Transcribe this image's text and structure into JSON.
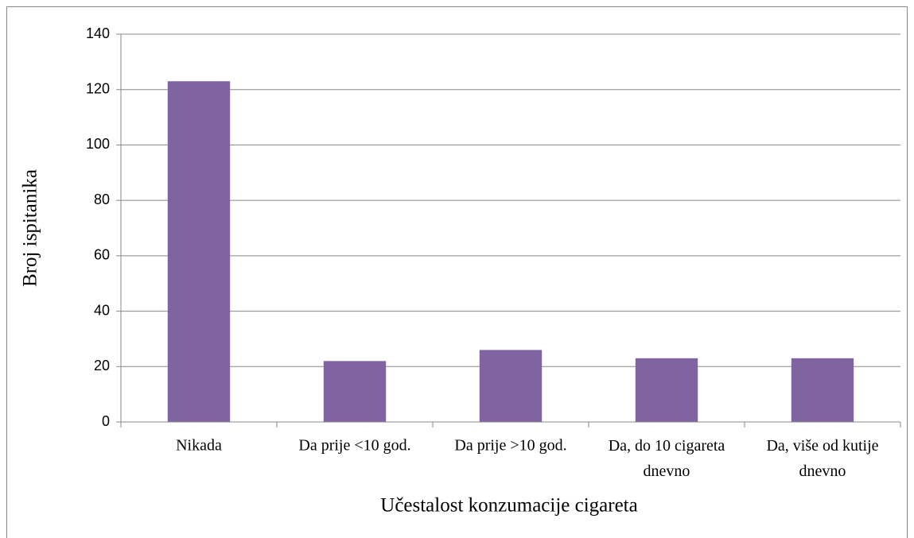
{
  "chart_data": {
    "type": "bar",
    "x_label": "Učestalost konzumacije cigareta",
    "y_label": "Broj ispitanika",
    "categories": [
      "Nikada",
      "Da prije <10 god.",
      "Da prije >10 god.",
      "Da, do 10 cigareta dnevno",
      "Da, više od kutije dnevno"
    ],
    "values": [
      123,
      22,
      26,
      23,
      23
    ],
    "color": "#8064a2",
    "ylim": [
      0,
      140
    ],
    "yticks": [
      0,
      20,
      40,
      60,
      80,
      100,
      120,
      140
    ],
    "grid": true
  }
}
